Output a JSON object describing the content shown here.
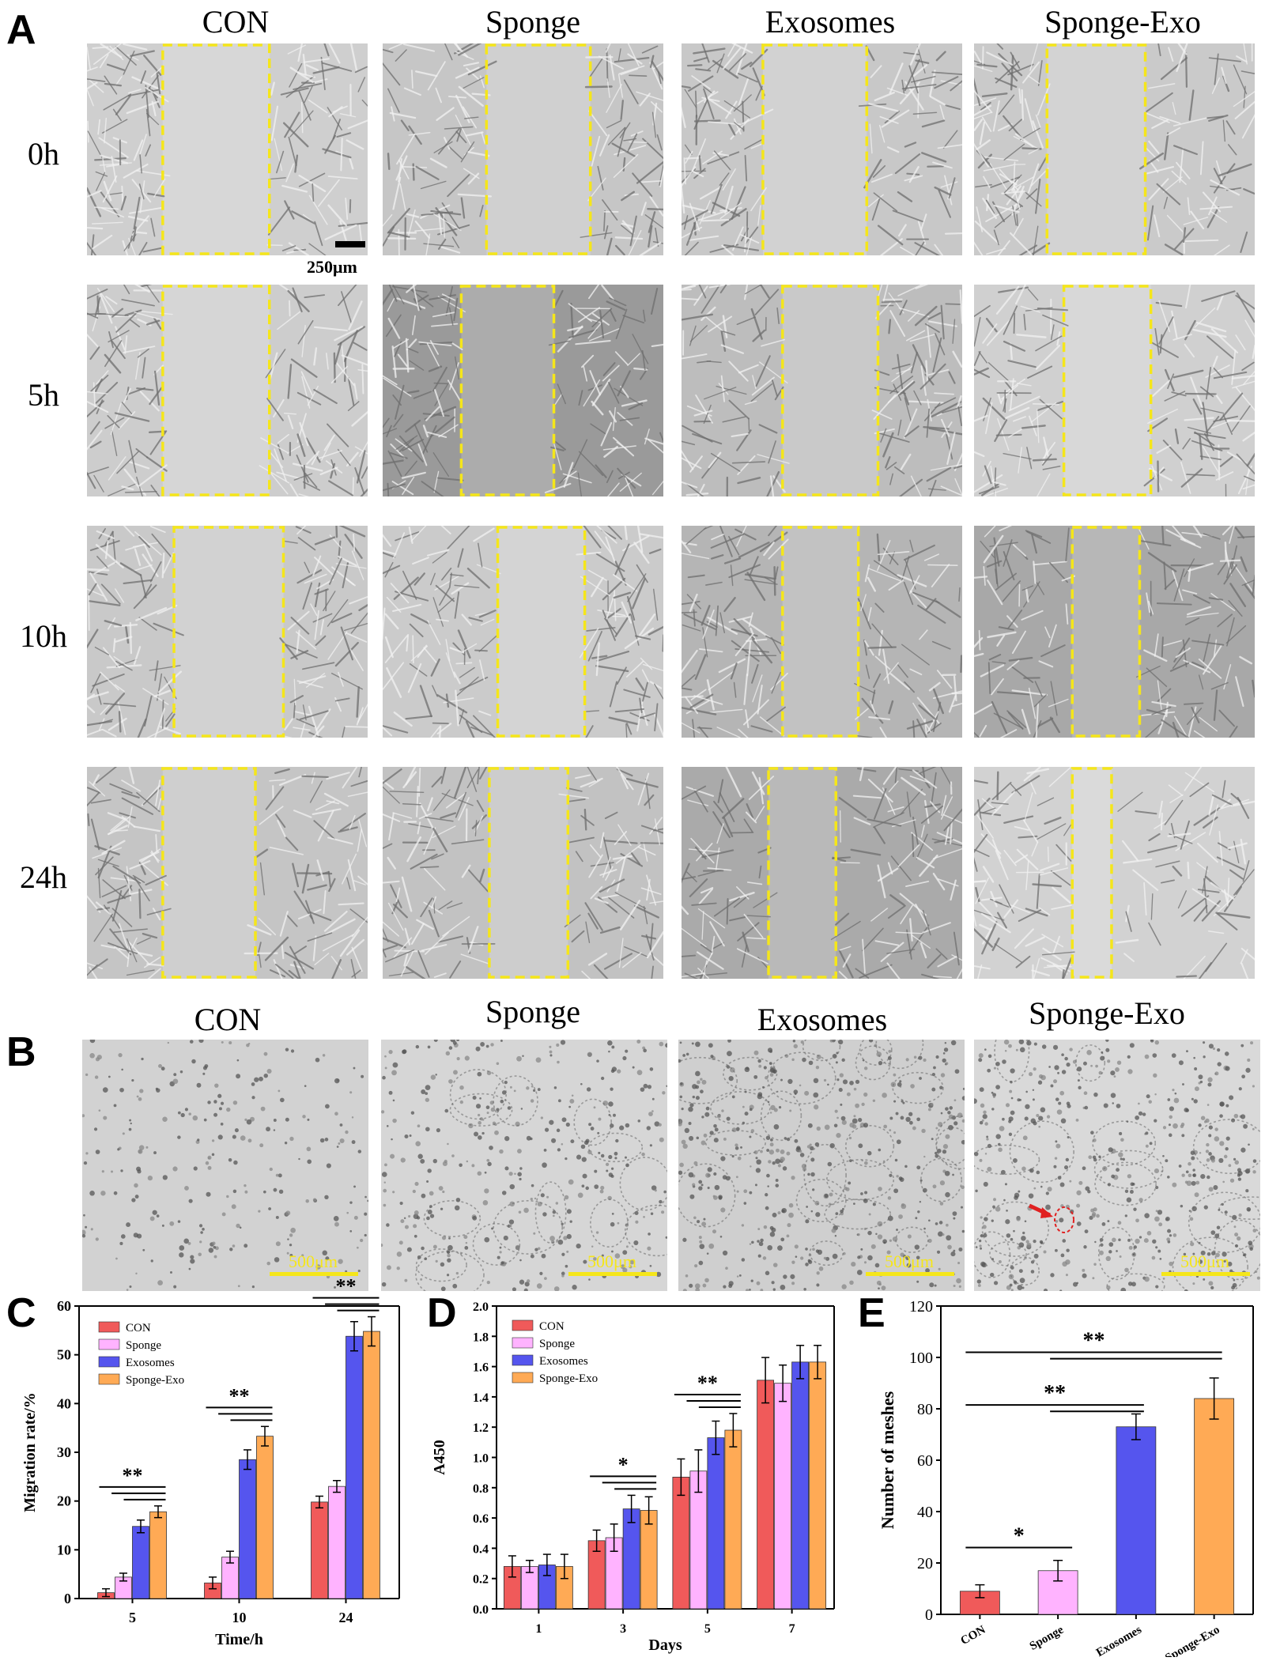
{
  "panel_a": {
    "letter": "A",
    "columns": [
      "CON",
      "Sponge",
      "Exosomes",
      "Sponge-Exo"
    ],
    "rows": [
      "0h",
      "5h",
      "10h",
      "24h"
    ],
    "scale_bar": "250μm"
  },
  "panel_b": {
    "letter": "B",
    "columns": [
      "CON",
      "Sponge",
      "Exosomes",
      "Sponge-Exo"
    ],
    "scale_bar": "500μm"
  },
  "colors": {
    "con": "#f05a5a",
    "sponge": "#ffb3ff",
    "exosomes": "#5555ee",
    "sponge_exo": "#ffaa55",
    "wound_box": "#f5e61a",
    "scale_b": "#f5e61a"
  },
  "chart_data": [
    {
      "panel": "C",
      "type": "bar",
      "categories": [
        "5",
        "10",
        "24"
      ],
      "xlabel": "Time/h",
      "ylabel": "Migration rate/%",
      "ylim": [
        0,
        60
      ],
      "yticks": [
        "0",
        "10",
        "20",
        "30",
        "40",
        "50",
        "60"
      ],
      "legend_position": "top-left",
      "series": [
        {
          "name": "CON",
          "values": [
            1.2,
            3.2,
            19.8
          ],
          "err": [
            0.8,
            1.2,
            1.2
          ]
        },
        {
          "name": "Sponge",
          "values": [
            4.4,
            8.5,
            23.0
          ],
          "err": [
            0.8,
            1.2,
            1.2
          ]
        },
        {
          "name": "Exosomes",
          "values": [
            14.8,
            28.5,
            53.8
          ],
          "err": [
            1.3,
            2.0,
            3.0
          ]
        },
        {
          "name": "Sponge-Exo",
          "values": [
            17.8,
            33.3,
            54.8
          ],
          "err": [
            1.2,
            2.0,
            3.0
          ]
        }
      ],
      "significance": [
        "**",
        "**",
        "**"
      ]
    },
    {
      "panel": "D",
      "type": "bar",
      "categories": [
        "1",
        "3",
        "5",
        "7"
      ],
      "xlabel": "Days",
      "ylabel": "A450",
      "ylim": [
        0,
        2.0
      ],
      "yticks": [
        "0.0",
        "0.2",
        "0.4",
        "0.6",
        "0.8",
        "1.0",
        "1.2",
        "1.4",
        "1.6",
        "1.8",
        "2.0"
      ],
      "legend_position": "top-left",
      "series": [
        {
          "name": "CON",
          "values": [
            0.28,
            0.45,
            0.87,
            1.51
          ],
          "err": [
            0.07,
            0.07,
            0.12,
            0.15
          ]
        },
        {
          "name": "Sponge",
          "values": [
            0.28,
            0.47,
            0.91,
            1.49
          ],
          "err": [
            0.04,
            0.09,
            0.14,
            0.12
          ]
        },
        {
          "name": "Exosomes",
          "values": [
            0.29,
            0.66,
            1.13,
            1.63
          ],
          "err": [
            0.07,
            0.09,
            0.11,
            0.11
          ]
        },
        {
          "name": "Sponge-Exo",
          "values": [
            0.28,
            0.65,
            1.18,
            1.63
          ],
          "err": [
            0.08,
            0.09,
            0.11,
            0.11
          ]
        }
      ],
      "significance": [
        "",
        "*",
        "**",
        ""
      ]
    },
    {
      "panel": "E",
      "type": "bar",
      "categories": [
        "CON",
        "Sponge",
        "Exosomes",
        "Sponge-Exo"
      ],
      "xlabel": "",
      "ylabel": "Number of meshes",
      "ylim": [
        0,
        120
      ],
      "yticks": [
        "0",
        "20",
        "40",
        "60",
        "80",
        "100",
        "120"
      ],
      "values": [
        9,
        17,
        73,
        84
      ],
      "err": [
        2.5,
        4,
        5,
        8
      ],
      "significance": [
        "*",
        "**",
        "**"
      ]
    }
  ],
  "chart_letters": [
    "C",
    "D",
    "E"
  ]
}
